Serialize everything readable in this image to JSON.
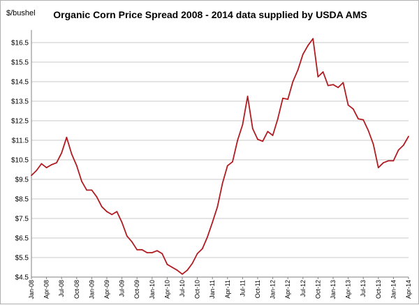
{
  "chart_data": {
    "type": "line",
    "title": "Organic Corn Price Spread 2008 - 2014 data supplied by USDA AMS",
    "ylabel": "$/bushel",
    "xlabel": "",
    "ylim": [
      4.5,
      17.0
    ],
    "yticks": [
      "$4.5",
      "$5.5",
      "$6.5",
      "$7.5",
      "$8.5",
      "$9.5",
      "$10.5",
      "$11.5",
      "$12.5",
      "$13.5",
      "$14.5",
      "$15.5",
      "$16.5"
    ],
    "ytick_values": [
      4.5,
      5.5,
      6.5,
      7.5,
      8.5,
      9.5,
      10.5,
      11.5,
      12.5,
      13.5,
      14.5,
      15.5,
      16.5
    ],
    "xticks": [
      "Jan-08",
      "Apr-08",
      "Jul-08",
      "Oct-08",
      "Jan-09",
      "Apr-09",
      "Jul-09",
      "Oct-09",
      "Jan-10",
      "Apr-10",
      "Jul-10",
      "Oct-10",
      "Jan-11",
      "Apr-11",
      "Jul-11",
      "Oct-11",
      "Jan-12",
      "Apr-12",
      "Jul-12",
      "Oct-12",
      "Jan-13",
      "Apr-13",
      "Jul-13",
      "Oct-13",
      "Jan-14",
      "Apr-14"
    ],
    "grid": "horizontal",
    "series_color": "#b01c22",
    "series": [
      {
        "values": [
          9.7,
          9.95,
          10.3,
          10.1,
          10.25,
          10.35,
          10.85,
          11.65,
          10.8,
          10.2,
          9.4,
          8.95,
          8.95,
          8.6,
          8.1,
          7.85,
          7.7,
          7.85,
          7.3,
          6.6,
          6.3,
          5.9,
          5.9,
          5.75,
          5.75,
          5.85,
          5.7,
          5.15,
          5.0,
          4.85,
          4.65,
          4.85,
          5.2,
          5.7,
          5.95,
          6.55,
          7.3,
          8.1,
          9.3,
          10.2,
          10.4,
          11.5,
          12.3,
          13.75,
          12.1,
          11.55,
          11.45,
          11.95,
          11.75,
          12.6,
          13.65,
          13.6,
          14.5,
          15.1,
          15.9,
          16.35,
          16.7,
          14.75,
          15.0,
          14.3,
          14.35,
          14.2,
          14.45,
          13.3,
          13.1,
          12.6,
          12.55,
          12.0,
          11.3,
          10.1,
          10.35,
          10.45,
          10.45,
          11.0,
          11.25,
          11.7
        ]
      }
    ]
  }
}
